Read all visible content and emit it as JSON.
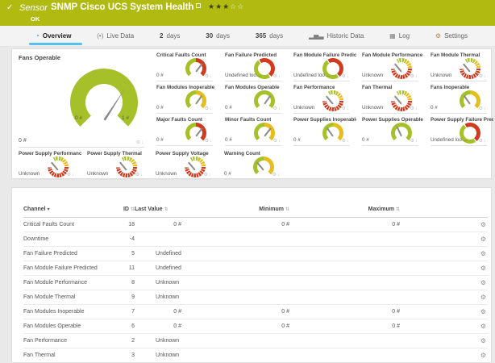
{
  "colors": {
    "green": "#a6c02a",
    "yellow": "#e7bd1c",
    "red": "#d23a1e",
    "header_bg": "#b0ba11",
    "accent": "#55c0ef"
  },
  "header": {
    "check": "✓",
    "kind": "Sensor",
    "title": "SNMP Cisco UCS System Health",
    "status": "OK",
    "stars_filled": "★★★",
    "stars_empty": "☆☆"
  },
  "tabs": [
    {
      "key": "overview",
      "icon": "gauge-icon",
      "glyph": "◔",
      "label": "Overview",
      "active": true
    },
    {
      "key": "live-data",
      "icon": "signal-icon",
      "glyph": "(•)",
      "label": "Live Data"
    },
    {
      "key": "2-days",
      "num": "2",
      "label": "days"
    },
    {
      "key": "30-days",
      "num": "30",
      "label": "days"
    },
    {
      "key": "365-days",
      "num": "365",
      "label": "days"
    },
    {
      "key": "historic-data",
      "icon": "bar-chart-icon",
      "glyph": "▂▅▃",
      "label": "Historic Data"
    },
    {
      "key": "log",
      "icon": "log-table-icon",
      "glyph": "▦",
      "label": "Log"
    },
    {
      "key": "settings",
      "icon": "gear-icon",
      "glyph": "⚙",
      "label": "Settings"
    }
  ],
  "main_gauge": {
    "title": "Fans Operable",
    "value": "0 #",
    "scale_min": "0 #",
    "scale_max": "1 #",
    "needle_deg": 33
  },
  "gauge_cell_icons": {
    "gear": "⚙",
    "pin": "↓"
  },
  "small_gauges": [
    {
      "title": "Critical Faults Count",
      "value": "0 #",
      "type": "gr",
      "needle_deg": 38
    },
    {
      "title": "Fan Failure Predicted",
      "value": "Undefined lookup v...",
      "type": "dn"
    },
    {
      "title": "Fan Module Failure Predicted",
      "value": "Undefined lookup v...",
      "type": "dn"
    },
    {
      "title": "Fan Module Performance",
      "value": "Unknown",
      "type": "seg",
      "needle_deg": -40
    },
    {
      "title": "Fan Module Thermal",
      "value": "Unknown",
      "type": "seg",
      "needle_deg": -40
    },
    {
      "title": "Fan Modules Inoperable",
      "value": "0 #",
      "type": "gy",
      "needle_deg": 35
    },
    {
      "title": "Fan Modules Operable",
      "value": "0 #",
      "type": "gg",
      "needle_deg": 35
    },
    {
      "title": "Fan Performance",
      "value": "Unknown",
      "type": "seg",
      "needle_deg": -40
    },
    {
      "title": "Fan Thermal",
      "value": "Unknown",
      "type": "seg",
      "needle_deg": -40
    },
    {
      "title": "Fans Inoperable",
      "value": "0 #",
      "type": "gy",
      "needle_deg": -35
    },
    {
      "title": "Major Faults Count",
      "value": "0 #",
      "type": "gr",
      "needle_deg": 38
    },
    {
      "title": "Minor Faults Count",
      "value": "0 #",
      "type": "gy",
      "needle_deg": 38
    },
    {
      "title": "Power Supplies Inoperable",
      "value": "0 #",
      "type": "gy",
      "needle_deg": -35
    },
    {
      "title": "Power Supplies Operable",
      "value": "0 #",
      "type": "gg",
      "needle_deg": -25
    },
    {
      "title": "Power Supply Failure Predicted",
      "value": "Undefined lookup v...",
      "type": "dn"
    },
    {
      "title": "Power Supply Performance",
      "value": "Unknown",
      "type": "seg",
      "needle_deg": -40
    },
    {
      "title": "Power Supply Thermal",
      "value": "Unknown",
      "type": "seg",
      "needle_deg": -40
    },
    {
      "title": "Power Supply Voltage",
      "value": "Unknown",
      "type": "seg",
      "needle_deg": -40
    },
    {
      "title": "Warning Count",
      "value": "0 #",
      "type": "gy",
      "needle_deg": -40
    }
  ],
  "table": {
    "columns": [
      {
        "label": "Channel",
        "sort": "▾",
        "sorted": true
      },
      {
        "label": "ID",
        "sort": "⇅"
      },
      {
        "label": "Last Value",
        "sort": "⇅"
      },
      {
        "label": "Minimum",
        "sort": "⇅"
      },
      {
        "label": "Maximum",
        "sort": "⇅"
      }
    ],
    "row_action_icon": "⚙",
    "rows": [
      {
        "channel": "Critical Faults Count",
        "id": "18",
        "last": "0 #",
        "min": "0 #",
        "max": "0 #",
        "numeric": true
      },
      {
        "channel": "Downtime",
        "id": "-4",
        "last": "",
        "min": "",
        "max": "",
        "numeric": false
      },
      {
        "channel": "Fan Failure Predicted",
        "id": "5",
        "last": "Undefined loo...",
        "min": "",
        "max": "",
        "numeric": false
      },
      {
        "channel": "Fan Module Failure Predicted",
        "id": "11",
        "last": "Undefined loo...",
        "min": "",
        "max": "",
        "numeric": false
      },
      {
        "channel": "Fan Module Performance",
        "id": "8",
        "last": "Unknown",
        "min": "",
        "max": "",
        "numeric": false
      },
      {
        "channel": "Fan Module Thermal",
        "id": "9",
        "last": "Unknown",
        "min": "",
        "max": "",
        "numeric": false
      },
      {
        "channel": "Fan Modules Inoperable",
        "id": "7",
        "last": "0 #",
        "min": "0 #",
        "max": "0 #",
        "numeric": true
      },
      {
        "channel": "Fan Modules Operable",
        "id": "6",
        "last": "0 #",
        "min": "0 #",
        "max": "0 #",
        "numeric": true
      },
      {
        "channel": "Fan Performance",
        "id": "2",
        "last": "Unknown",
        "min": "",
        "max": "",
        "numeric": false
      },
      {
        "channel": "Fan Thermal",
        "id": "3",
        "last": "Unknown",
        "min": "",
        "max": "",
        "numeric": false
      }
    ]
  }
}
